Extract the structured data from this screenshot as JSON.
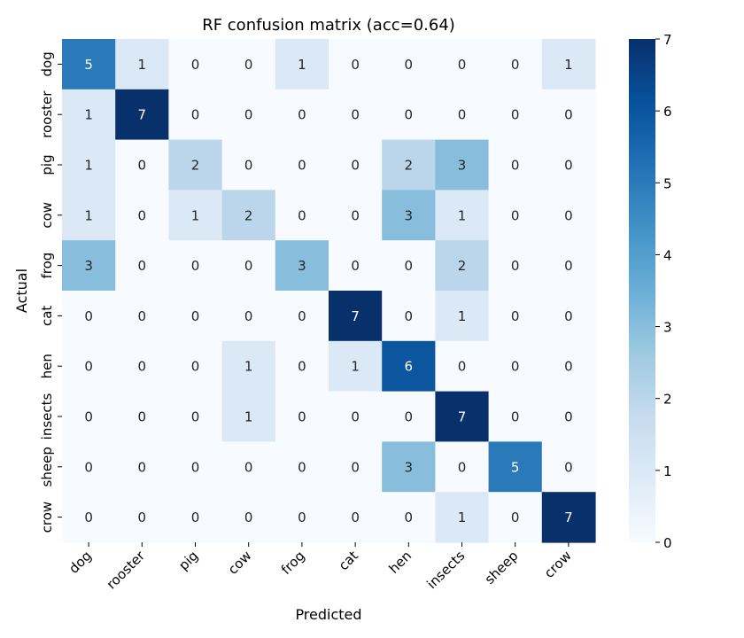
{
  "chart_data": {
    "type": "heatmap",
    "title": "RF confusion matrix (acc=0.64)",
    "xlabel": "Predicted",
    "ylabel": "Actual",
    "x_categories": [
      "dog",
      "rooster",
      "pig",
      "cow",
      "frog",
      "cat",
      "hen",
      "insects",
      "sheep",
      "crow"
    ],
    "y_categories": [
      "dog",
      "rooster",
      "pig",
      "cow",
      "frog",
      "cat",
      "hen",
      "insects",
      "sheep",
      "crow"
    ],
    "values": [
      [
        5,
        1,
        0,
        0,
        1,
        0,
        0,
        0,
        0,
        1
      ],
      [
        1,
        7,
        0,
        0,
        0,
        0,
        0,
        0,
        0,
        0
      ],
      [
        1,
        0,
        2,
        0,
        0,
        0,
        2,
        3,
        0,
        0
      ],
      [
        1,
        0,
        1,
        2,
        0,
        0,
        3,
        1,
        0,
        0
      ],
      [
        3,
        0,
        0,
        0,
        3,
        0,
        0,
        2,
        0,
        0
      ],
      [
        0,
        0,
        0,
        0,
        0,
        7,
        0,
        1,
        0,
        0
      ],
      [
        0,
        0,
        0,
        1,
        0,
        1,
        6,
        0,
        0,
        0
      ],
      [
        0,
        0,
        0,
        1,
        0,
        0,
        0,
        7,
        0,
        0
      ],
      [
        0,
        0,
        0,
        0,
        0,
        0,
        3,
        0,
        5,
        0
      ],
      [
        0,
        0,
        0,
        0,
        0,
        0,
        0,
        1,
        0,
        7
      ]
    ],
    "colormap": "Blues",
    "colorbar": {
      "min": 0,
      "max": 7,
      "ticks": [
        0,
        1,
        2,
        3,
        4,
        5,
        6,
        7
      ]
    },
    "annotations": true
  }
}
